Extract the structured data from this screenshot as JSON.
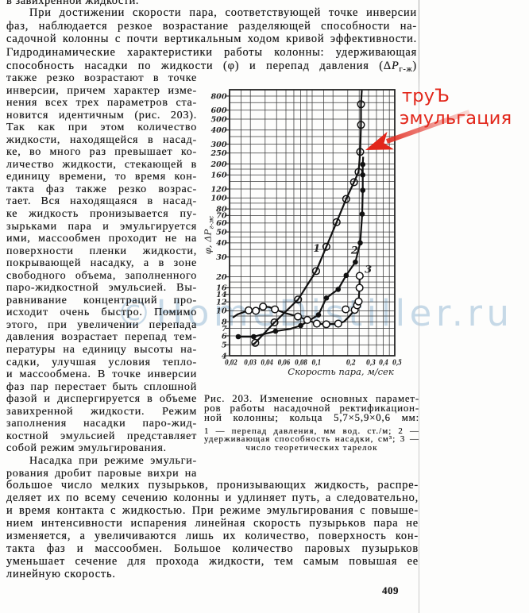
{
  "page": {
    "language": "ru",
    "page_number": "409",
    "background": "#fdfdfc",
    "text_color": "#1c1c1c"
  },
  "top_partial_line": "в завихренной жидкости.",
  "top_paragraph": {
    "lines": [
      {
        "t": "При достижении скорости пара, соответствующей точке инверсии",
        "cls": "indent"
      },
      {
        "t": "фаз, наблюдается резкое возрастание разделяющей способности на-"
      },
      {
        "t": "садочной колонны с почти вертикальным ходом кривой эффективности."
      },
      {
        "t": "Гидродинамические характеристики работы колонны: удерживающая"
      },
      {
        "parts": [
          {
            "t": "способность насадки по жидкости (φ) и перепад давления (Δ"
          },
          {
            "t": "Р",
            "s": "i"
          },
          {
            "t": "г-ж",
            "s": "sub"
          },
          {
            "t": ")"
          }
        ]
      }
    ]
  },
  "left_column": {
    "lines": [
      {
        "t": "также резко  возрастают в точке"
      },
      {
        "t": "инверсии, причем характер изме-"
      },
      {
        "t": "нения всех трех параметров ста-"
      },
      {
        "t": "новится идентичным (рис. 203)."
      },
      {
        "t": "Так  как  при  этом количество"
      },
      {
        "t": "жидкости, находящейся в насад-"
      },
      {
        "t": "ке, во много раз  превышает ко-"
      },
      {
        "t": "личество жидкости, стекающей в"
      },
      {
        "t": "единицу времени,  то время кон-"
      },
      {
        "t": "такта фаз  также  резко  возрас-"
      },
      {
        "t": "тает.  Вся  находящаяся в насад-"
      },
      {
        "t": "ке  жидкость  пронизывается пу-"
      },
      {
        "t": "зырьками пара и эмульгируется"
      },
      {
        "t": "ими,  массообмен проходит не на"
      },
      {
        "t": "поверхности  пленки  жидкости,"
      },
      {
        "t": "покрывающей насадку, а в зоне"
      },
      {
        "t": "свободного объема, заполненного"
      },
      {
        "t": "паро-жидкостной эмульсией. Вы-"
      },
      {
        "t": "равнивание  концентраций  про-"
      },
      {
        "t": "исходит  очень  быстро.  Помимо"
      },
      {
        "t": "этого,  при  увеличении  перепада"
      },
      {
        "t": "давления возрастает перепад тем-"
      },
      {
        "t": "пературы на единицу высоты на-"
      },
      {
        "t": "садки,  улучшая  условия  тепло-"
      },
      {
        "t": "и  массообмена. В точке инверсии"
      },
      {
        "t": "фаз пар перестает быть сплошной"
      },
      {
        "t": "фазой и диспергируется в объеме"
      },
      {
        "t": "завихренной  жидкости.  Режим"
      },
      {
        "t": "заполнения  насадки  паро-жид-"
      },
      {
        "t": "костной эмульсией представляет"
      },
      {
        "t": "собой  режим  эмульгирования.",
        "cls": "end"
      },
      {
        "t": "Насадка при режиме эмульги-",
        "cls": "indent"
      },
      {
        "t": "рования дробит паровые вихри на"
      }
    ]
  },
  "bottom_paragraph": {
    "lines": [
      {
        "t": "большое число мелких пузырьков, пронизывающих жидкость, распре-"
      },
      {
        "t": "деляет их по всему сечению колонны и удлиняет путь, а следовательно,"
      },
      {
        "t": "и время контакта с жидкостью. При режиме эмульгирования с повыше-"
      },
      {
        "t": "нием интенсивности испарения линейная скорость пузырьков пара не"
      },
      {
        "t": "изменяется, а увеличиваются лишь их количество, поверхность кон-"
      },
      {
        "t": "такта фаз и массообмен. Большое количество паровых пузырьков"
      },
      {
        "t": "уменьшает сечение для прохода жидкости, тем самым повышая ее"
      },
      {
        "t": "линейную  скорость.",
        "cls": "end"
      }
    ]
  },
  "figure": {
    "caption_lines": [
      {
        "t": "Рис. 203. Изменение основных парамет-"
      },
      {
        "t": "ров работы насадочной ректификацион-"
      },
      {
        "t": "ной колонны; кольца 5,7×5,9×0,6 мм:"
      }
    ],
    "legend_lines": [
      {
        "t": "1 — перепад давления, мм вод. ст./м; 2 —"
      },
      {
        "t": "удерживающая способность насадки, см³; 3 —"
      },
      {
        "t": "число теоретических тарелок",
        "cls": "center"
      }
    ]
  },
  "annotation": {
    "line1": "труЪ",
    "line2": "эмульгация",
    "color": "#e2271b"
  },
  "watermark": {
    "text": "©HomeDistiller.ru",
    "color": "#c6d9e7"
  },
  "chart_data": {
    "type": "line",
    "title": "",
    "xlabel": "Скорость пара, м/сек",
    "ylabel": "φ, ΔРг-ж",
    "ylabel_main": "φ, ΔР",
    "ylabel_sub": "г-ж",
    "x_scale": "log",
    "y_scale": "log",
    "xlim": [
      0.02,
      0.5
    ],
    "ylim": [
      4,
      910
    ],
    "grid": true,
    "x_gridlines": [
      0.02,
      0.025,
      0.03,
      0.04,
      0.05,
      0.06,
      0.07,
      0.08,
      0.09,
      0.1,
      0.125,
      0.15,
      0.2,
      0.25,
      0.3,
      0.35,
      0.4,
      0.45,
      0.5
    ],
    "y_gridlines": [
      4,
      5,
      6,
      7,
      8,
      9,
      10,
      12,
      14,
      16,
      18,
      20,
      25,
      30,
      35,
      40,
      45,
      50,
      60,
      70,
      80,
      90,
      100,
      120,
      140,
      160,
      180,
      200,
      250,
      300,
      350,
      400,
      500,
      600,
      700,
      800
    ],
    "x_ticks": [
      {
        "v": 0.02,
        "label": "0,02"
      },
      {
        "v": 0.03,
        "label": "0,03"
      },
      {
        "v": 0.04,
        "label": "0,04"
      },
      {
        "v": 0.06,
        "label": "0,06"
      },
      {
        "v": 0.08,
        "label": "0,08"
      },
      {
        "v": 0.1,
        "label": "0,1"
      },
      {
        "v": 0.2,
        "label": "0,2"
      },
      {
        "v": 0.3,
        "label": "0,3"
      },
      {
        "v": 0.4,
        "label": "0,4"
      },
      {
        "v": 0.5,
        "label": "0,5"
      }
    ],
    "y_ticks": [
      {
        "v": 800,
        "label": "800"
      },
      {
        "v": 600,
        "label": "600"
      },
      {
        "v": 500,
        "label": "500"
      },
      {
        "v": 400,
        "label": "400"
      },
      {
        "v": 300,
        "label": "300"
      },
      {
        "v": 250,
        "label": "250"
      },
      {
        "v": 200,
        "label": "200"
      },
      {
        "v": 160,
        "label": "160"
      },
      {
        "v": 120,
        "label": "120"
      },
      {
        "v": 100,
        "label": "100"
      },
      {
        "v": 80,
        "label": "80"
      },
      {
        "v": 70,
        "label": "70"
      },
      {
        "v": 60,
        "label": "60"
      },
      {
        "v": 50,
        "label": "50"
      },
      {
        "v": 40,
        "label": "40"
      },
      {
        "v": 30,
        "label": "30"
      },
      {
        "v": 20,
        "label": "20"
      },
      {
        "v": 16,
        "label": "16"
      },
      {
        "v": 14,
        "label": "14"
      },
      {
        "v": 12,
        "label": "12"
      },
      {
        "v": 10,
        "label": "10"
      },
      {
        "v": 8,
        "label": "8"
      },
      {
        "v": 7,
        "label": "7"
      },
      {
        "v": 6,
        "label": "6"
      },
      {
        "v": 5,
        "label": "5"
      },
      {
        "v": 4,
        "label": "4"
      }
    ],
    "series": [
      {
        "name": "1 — перепад давления, мм вод. ст./м",
        "curve_label": "1",
        "label_at": [
          0.102,
          33.5
        ],
        "marker": "slashed-circle",
        "points": [
          {
            "x": 0.0313,
            "y": 5.0,
            "m": false
          },
          {
            "x": 0.033,
            "y": 5.2,
            "m": true
          },
          {
            "x": 0.048,
            "y": 7.9,
            "m": true
          },
          {
            "x": 0.076,
            "y": 12.6,
            "m": true
          },
          {
            "x": 0.108,
            "y": 22.5,
            "m": true
          },
          {
            "x": 0.132,
            "y": 37,
            "m": true
          },
          {
            "x": 0.161,
            "y": 61,
            "m": true
          },
          {
            "x": 0.194,
            "y": 98,
            "m": true
          },
          {
            "x": 0.226,
            "y": 138,
            "m": true
          },
          {
            "x": 0.247,
            "y": 170,
            "m": true
          },
          {
            "x": 0.255,
            "y": 256,
            "m": true
          },
          {
            "x": 0.259,
            "y": 444,
            "m": true
          },
          {
            "x": 0.259,
            "y": 677,
            "m": true
          },
          {
            "x": 0.263,
            "y": 900,
            "m": false
          }
        ]
      },
      {
        "name": "2 — удерживающая способность насадки, см³",
        "curve_label": "2",
        "label_at": [
          0.213,
          32
        ],
        "marker": "dot",
        "points": [
          {
            "x": 0.0237,
            "y": 5.9,
            "m": true
          },
          {
            "x": 0.032,
            "y": 5.9,
            "m": true
          },
          {
            "x": 0.049,
            "y": 6.6,
            "m": true
          },
          {
            "x": 0.065,
            "y": 6.9,
            "m": false
          },
          {
            "x": 0.08,
            "y": 7.4,
            "m": true
          },
          {
            "x": 0.113,
            "y": 9.2,
            "m": true
          },
          {
            "x": 0.132,
            "y": 13,
            "m": true
          },
          {
            "x": 0.166,
            "y": 15.5,
            "m": true
          },
          {
            "x": 0.194,
            "y": 20.6,
            "m": true
          },
          {
            "x": 0.232,
            "y": 27,
            "m": true
          },
          {
            "x": 0.255,
            "y": 40,
            "m": true
          },
          {
            "x": 0.265,
            "y": 72,
            "m": true
          },
          {
            "x": 0.268,
            "y": 117,
            "m": true
          },
          {
            "x": 0.268,
            "y": 160,
            "m": true
          },
          {
            "x": 0.268,
            "y": 198,
            "m": true
          },
          {
            "x": 0.27,
            "y": 232,
            "m": false
          }
        ]
      },
      {
        "name": "3 — число теоретических тарелок",
        "curve_label": "3",
        "label_at": [
          0.278,
          21.7
        ],
        "marker": "circle",
        "points": [
          {
            "x": 0.0213,
            "y": 8.7,
            "m": false
          },
          {
            "x": 0.0234,
            "y": 9.3,
            "m": false
          },
          {
            "x": 0.029,
            "y": 10.1,
            "m": true
          },
          {
            "x": 0.0334,
            "y": 10.0,
            "m": true
          },
          {
            "x": 0.0384,
            "y": 10.9,
            "m": true
          },
          {
            "x": 0.0433,
            "y": 10.8,
            "m": false
          },
          {
            "x": 0.0484,
            "y": 10.3,
            "m": true
          },
          {
            "x": 0.06,
            "y": 9.5,
            "m": false
          },
          {
            "x": 0.0757,
            "y": 8.9,
            "m": true
          },
          {
            "x": 0.091,
            "y": 8.3,
            "m": true
          },
          {
            "x": 0.1095,
            "y": 7.7,
            "m": true
          },
          {
            "x": 0.1317,
            "y": 7.6,
            "m": true
          },
          {
            "x": 0.1662,
            "y": 7.7,
            "m": true
          },
          {
            "x": 0.1858,
            "y": 8.0,
            "m": false
          },
          {
            "x": 0.2063,
            "y": 8.95,
            "m": false
          },
          {
            "x": 0.2293,
            "y": 10.2,
            "m": true
          },
          {
            "x": 0.2401,
            "y": 11.2,
            "m": true
          },
          {
            "x": 0.2471,
            "y": 12.1,
            "m": true
          },
          {
            "x": 0.2517,
            "y": 16.0,
            "m": true
          },
          {
            "x": 0.2524,
            "y": 20.4,
            "m": true
          }
        ],
        "stray_markers": [
          {
            "x": 0.1922,
            "y": 10.3
          }
        ]
      }
    ]
  }
}
